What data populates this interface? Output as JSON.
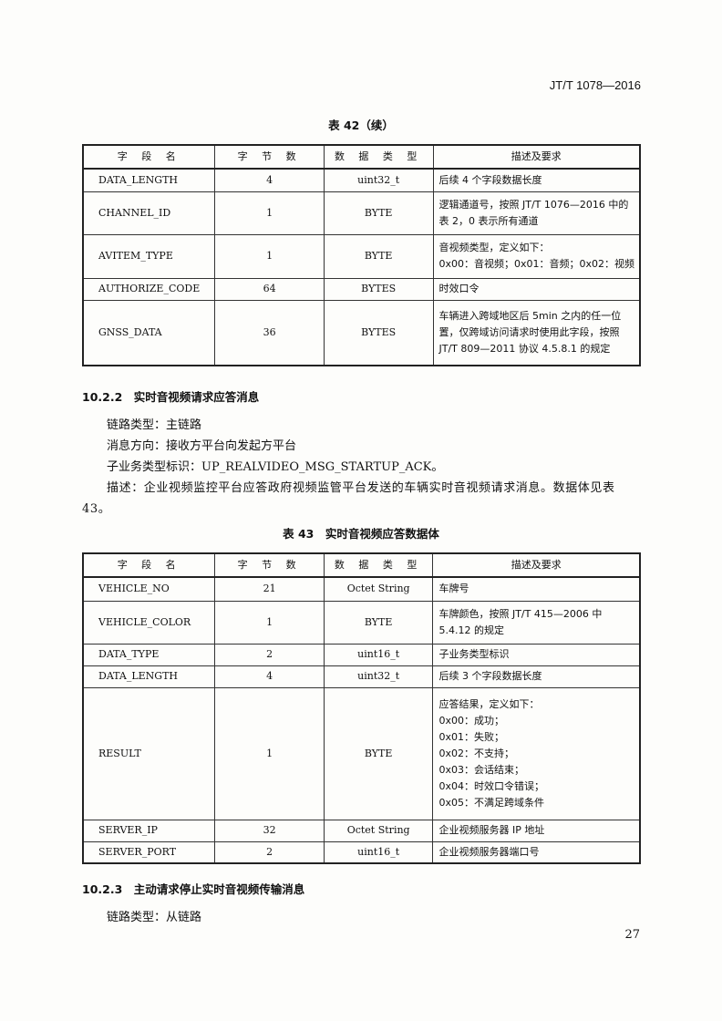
{
  "header": {
    "standard": "JT/T 1078—2016"
  },
  "table42": {
    "caption": "表 42（续）",
    "columns": [
      "字 段 名",
      "字 节 数",
      "数 据 类 型",
      "描述及要求"
    ],
    "rows": [
      {
        "name": "DATA_LENGTH",
        "bytes": "4",
        "type": "uint32_t",
        "desc": "后续 4 个字段数据长度"
      },
      {
        "name": "CHANNEL_ID",
        "bytes": "1",
        "type": "BYTE",
        "desc": "逻辑通道号，按照 JT/T 1076—2016 中的表 2，0 表示所有通道"
      },
      {
        "name": "AVITEM_TYPE",
        "bytes": "1",
        "type": "BYTE",
        "desc": "音视频类型，定义如下：\n0x00：音视频；0x01：音频；0x02：视频"
      },
      {
        "name": "AUTHORIZE_CODE",
        "bytes": "64",
        "type": "BYTES",
        "desc": "时效口令"
      },
      {
        "name": "GNSS_DATA",
        "bytes": "36",
        "type": "BYTES",
        "desc": "车辆进入跨域地区后 5min 之内的任一位置，仅跨域访问请求时使用此字段，按照 JT/T 809—2011 协议 4.5.8.1 的规定"
      }
    ]
  },
  "section_1022": {
    "title": "10.2.2　实时音视频请求应答消息",
    "paragraphs": [
      "链路类型：主链路",
      "消息方向：接收方平台向发起方平台",
      "子业务类型标识：UP_REALVIDEO_MSG_STARTUP_ACK。",
      "描述：企业视频监控平台应答政府视频监管平台发送的车辆实时音视频请求消息。数据体见表 43。"
    ]
  },
  "table43": {
    "caption": "表 43　实时音视频应答数据体",
    "columns": [
      "字 段 名",
      "字 节 数",
      "数 据 类 型",
      "描述及要求"
    ],
    "rows": [
      {
        "name": "VEHICLE_NO",
        "bytes": "21",
        "type": "Octet String",
        "desc": "车牌号"
      },
      {
        "name": "VEHICLE_COLOR",
        "bytes": "1",
        "type": "BYTE",
        "desc": "车牌颜色，按照 JT/T 415—2006 中 5.4.12 的规定"
      },
      {
        "name": "DATA_TYPE",
        "bytes": "2",
        "type": "uint16_t",
        "desc": "子业务类型标识"
      },
      {
        "name": "DATA_LENGTH",
        "bytes": "4",
        "type": "uint32_t",
        "desc": "后续 3 个字段数据长度"
      },
      {
        "name": "RESULT",
        "bytes": "1",
        "type": "BYTE",
        "desc": "应答结果，定义如下：\n0x00：成功；\n0x01：失败；\n0x02：不支持；\n0x03：会话结束；\n0x04：时效口令错误；\n0x05：不满足跨域条件"
      },
      {
        "name": "SERVER_IP",
        "bytes": "32",
        "type": "Octet String",
        "desc": "企业视频服务器 IP 地址"
      },
      {
        "name": "SERVER_PORT",
        "bytes": "2",
        "type": "uint16_t",
        "desc": "企业视频服务器端口号"
      }
    ]
  },
  "section_1023": {
    "title": "10.2.3　主动请求停止实时音视频传输消息",
    "paragraphs": [
      "链路类型：从链路"
    ]
  },
  "page_number": "27"
}
